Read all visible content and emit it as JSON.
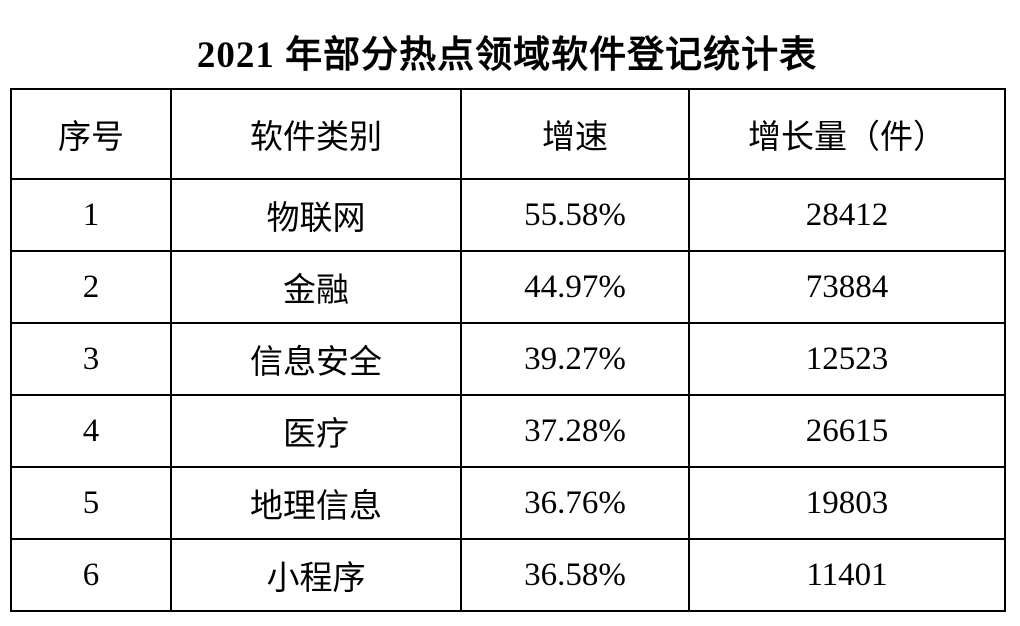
{
  "page": {
    "title": "2021 年部分热点领域软件登记统计表"
  },
  "colors": {
    "background": "#ffffff",
    "text": "#000000",
    "border": "#000000"
  },
  "table": {
    "headers": [
      "序号",
      "软件类别",
      "增速",
      "增长量（件）"
    ],
    "rows": [
      {
        "cells": [
          "1",
          "物联网",
          "55.58%",
          "28412"
        ]
      },
      {
        "cells": [
          "2",
          "金融",
          "44.97%",
          "73884"
        ]
      },
      {
        "cells": [
          "3",
          "信息安全",
          "39.27%",
          "12523"
        ]
      },
      {
        "cells": [
          "4",
          "医疗",
          "37.28%",
          "26615"
        ]
      },
      {
        "cells": [
          "5",
          "地理信息",
          "36.76%",
          "19803"
        ]
      },
      {
        "cells": [
          "6",
          "小程序",
          "36.58%",
          "11401"
        ]
      }
    ]
  },
  "chart_data": {
    "type": "table",
    "title": "2021 年部分热点领域软件登记统计表",
    "columns": [
      "序号",
      "软件类别",
      "增速",
      "增长量（件）"
    ],
    "categories": [
      "物联网",
      "金融",
      "信息安全",
      "医疗",
      "地理信息",
      "小程序"
    ],
    "series": [
      {
        "name": "增速(%)",
        "values": [
          55.58,
          44.97,
          39.27,
          37.28,
          36.76,
          36.58
        ]
      },
      {
        "name": "增长量(件)",
        "values": [
          28412,
          73884,
          12523,
          26615,
          19803,
          11401
        ]
      }
    ]
  }
}
